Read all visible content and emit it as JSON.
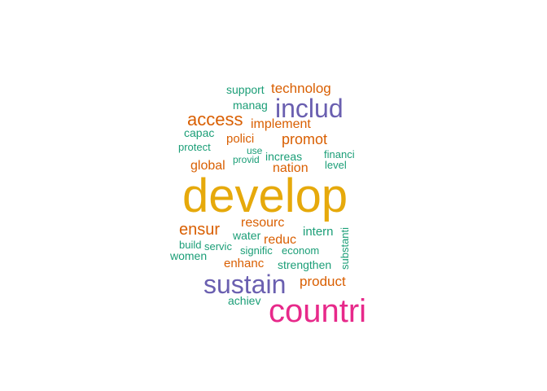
{
  "palette": {
    "gold": "#e6a90b",
    "magenta": "#e7298a",
    "purple": "#6a5fb0",
    "orange": "#d95f02",
    "teal": "#1b9e77"
  },
  "words": [
    {
      "text": "develop",
      "color": "#e6a90b"
    },
    {
      "text": "countri",
      "color": "#e7298a"
    },
    {
      "text": "sustain",
      "color": "#6a5fb0"
    },
    {
      "text": "includ",
      "color": "#6a5fb0"
    },
    {
      "text": "access",
      "color": "#d95f02"
    },
    {
      "text": "technolog",
      "color": "#d95f02"
    },
    {
      "text": "support",
      "color": "#1b9e77"
    },
    {
      "text": "manag",
      "color": "#1b9e77"
    },
    {
      "text": "implement",
      "color": "#d95f02"
    },
    {
      "text": "capac",
      "color": "#1b9e77"
    },
    {
      "text": "protect",
      "color": "#1b9e77"
    },
    {
      "text": "polici",
      "color": "#d95f02"
    },
    {
      "text": "promot",
      "color": "#d95f02"
    },
    {
      "text": "use",
      "color": "#1b9e77"
    },
    {
      "text": "increas",
      "color": "#1b9e77"
    },
    {
      "text": "financi",
      "color": "#1b9e77"
    },
    {
      "text": "provid",
      "color": "#1b9e77"
    },
    {
      "text": "level",
      "color": "#1b9e77"
    },
    {
      "text": "global",
      "color": "#d95f02"
    },
    {
      "text": "nation",
      "color": "#d95f02"
    },
    {
      "text": "ensur",
      "color": "#d95f02"
    },
    {
      "text": "resourc",
      "color": "#d95f02"
    },
    {
      "text": "water",
      "color": "#1b9e77"
    },
    {
      "text": "intern",
      "color": "#1b9e77"
    },
    {
      "text": "reduc",
      "color": "#d95f02"
    },
    {
      "text": "build",
      "color": "#1b9e77"
    },
    {
      "text": "servic",
      "color": "#1b9e77"
    },
    {
      "text": "signific",
      "color": "#1b9e77"
    },
    {
      "text": "econom",
      "color": "#1b9e77"
    },
    {
      "text": "women",
      "color": "#1b9e77"
    },
    {
      "text": "enhanc",
      "color": "#d95f02"
    },
    {
      "text": "strengthen",
      "color": "#1b9e77"
    },
    {
      "text": "substanti",
      "color": "#1b9e77"
    },
    {
      "text": "product",
      "color": "#d95f02"
    },
    {
      "text": "achiev",
      "color": "#1b9e77"
    }
  ]
}
